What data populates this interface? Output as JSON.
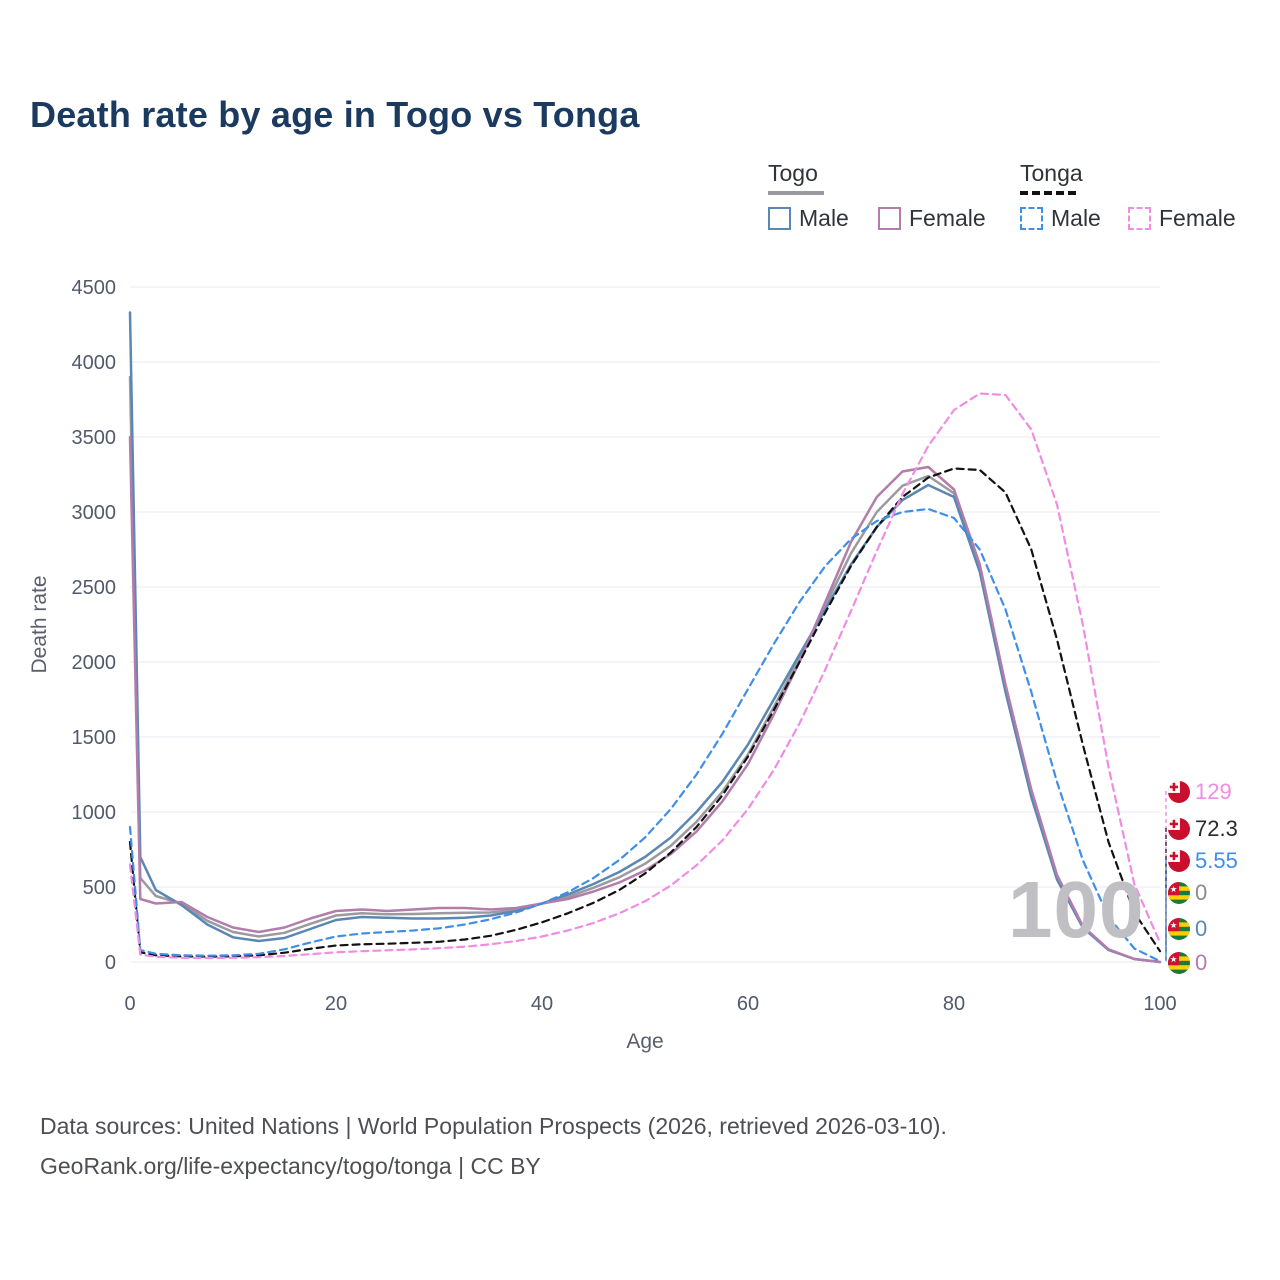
{
  "title": "Death rate by age in Togo vs Tonga",
  "legend": {
    "groups": [
      {
        "label": "Togo",
        "style": "solid",
        "color": "#9a9aa0"
      },
      {
        "label": "Tonga",
        "style": "dashed",
        "color": "#121212"
      }
    ],
    "items": [
      {
        "label": "Male",
        "group": "Togo",
        "style": "solid",
        "color": "#5b87b3"
      },
      {
        "label": "Female",
        "group": "Togo",
        "style": "solid",
        "color": "#b27cab"
      },
      {
        "label": "Male",
        "group": "Tonga",
        "style": "dashed",
        "color": "#3f8ee8"
      },
      {
        "label": "Female",
        "group": "Tonga",
        "style": "dashed",
        "color": "#ee8de3"
      }
    ]
  },
  "watermark": "100",
  "end_labels": [
    {
      "value": "129",
      "color": "#ee8de3",
      "flag": "tonga",
      "icon": "tonga-flag-icon"
    },
    {
      "value": "72.3",
      "color": "#2b2b2b",
      "flag": "tonga",
      "icon": "tonga-flag-icon"
    },
    {
      "value": "5.55",
      "color": "#3f8ee8",
      "flag": "tonga",
      "icon": "tonga-flag-icon"
    },
    {
      "value": "0",
      "color": "#8b8b93",
      "flag": "togo",
      "icon": "togo-flag-icon"
    },
    {
      "value": "0",
      "color": "#5b87b3",
      "flag": "togo",
      "icon": "togo-flag-icon"
    },
    {
      "value": "0",
      "color": "#b27cab",
      "flag": "togo",
      "icon": "togo-flag-icon"
    }
  ],
  "footer": {
    "line1": "Data sources: United Nations | World Population Prospects (2026, retrieved 2026-03-10).",
    "line2": "GeoRank.org/life-expectancy/togo/tonga | CC BY"
  },
  "chart_data": {
    "type": "line",
    "title": "Death rate by age in Togo vs Tonga",
    "xlabel": "Age",
    "ylabel": "Death rate",
    "xlim": [
      0,
      100
    ],
    "ylim": [
      0,
      4500
    ],
    "x_ticks": [
      0,
      20,
      40,
      60,
      80,
      100
    ],
    "y_ticks": [
      0,
      500,
      1000,
      1500,
      2000,
      2500,
      3000,
      3500,
      4000,
      4500
    ],
    "grid": "horizontal",
    "legend_position": "top-right",
    "x": [
      0,
      1,
      2.5,
      5,
      7.5,
      10,
      12.5,
      15,
      17.5,
      20,
      22.5,
      25,
      27.5,
      30,
      32.5,
      35,
      37.5,
      40,
      42.5,
      45,
      47.5,
      50,
      52.5,
      55,
      57.5,
      60,
      62.5,
      65,
      67.5,
      70,
      72.5,
      75,
      77.5,
      80,
      82.5,
      85,
      87.5,
      90,
      92.5,
      95,
      97.5,
      100
    ],
    "series": [
      {
        "name": "Togo Total",
        "group": "Togo",
        "style": "solid",
        "color": "#9a9aa0",
        "width": 2.5,
        "y": [
          3900,
          560,
          440,
          390,
          275,
          200,
          170,
          195,
          255,
          310,
          325,
          318,
          320,
          325,
          328,
          330,
          350,
          390,
          435,
          495,
          565,
          655,
          775,
          935,
          1135,
          1385,
          1700,
          2025,
          2375,
          2725,
          3000,
          3175,
          3240,
          3125,
          2625,
          1825,
          1125,
          565,
          235,
          82,
          20,
          0
        ]
      },
      {
        "name": "Togo Male",
        "group": "Togo",
        "style": "solid",
        "color": "#5b87b3",
        "width": 2.5,
        "y": [
          4330,
          700,
          480,
          380,
          250,
          165,
          140,
          160,
          220,
          280,
          300,
          295,
          290,
          290,
          295,
          310,
          340,
          390,
          450,
          520,
          600,
          700,
          830,
          1000,
          1200,
          1450,
          1750,
          2050,
          2350,
          2650,
          2900,
          3080,
          3180,
          3100,
          2600,
          1800,
          1100,
          550,
          230,
          80,
          20,
          0
        ]
      },
      {
        "name": "Togo Female",
        "group": "Togo",
        "style": "solid",
        "color": "#b27cab",
        "width": 2.5,
        "y": [
          3500,
          420,
          390,
          400,
          300,
          230,
          200,
          230,
          290,
          340,
          350,
          340,
          350,
          360,
          360,
          350,
          360,
          390,
          420,
          470,
          530,
          610,
          720,
          870,
          1070,
          1320,
          1650,
          2000,
          2400,
          2800,
          3100,
          3270,
          3300,
          3150,
          2650,
          1850,
          1150,
          580,
          240,
          85,
          20,
          0
        ]
      },
      {
        "name": "Tonga Total",
        "group": "Tonga",
        "style": "dashed",
        "color": "#121212",
        "width": 2.2,
        "y": [
          800,
          65,
          45,
          38,
          36,
          38,
          45,
          62,
          88,
          110,
          118,
          122,
          128,
          135,
          150,
          175,
          215,
          265,
          325,
          395,
          480,
          590,
          730,
          900,
          1110,
          1370,
          1680,
          2000,
          2330,
          2640,
          2900,
          3100,
          3230,
          3290,
          3280,
          3130,
          2750,
          2150,
          1450,
          800,
          330,
          72.3
        ]
      },
      {
        "name": "Tonga Male",
        "group": "Tonga",
        "style": "dashed",
        "color": "#3f8ee8",
        "width": 2.2,
        "y": [
          900,
          80,
          55,
          45,
          42,
          45,
          55,
          85,
          130,
          170,
          190,
          200,
          210,
          225,
          250,
          285,
          330,
          390,
          465,
          560,
          680,
          830,
          1020,
          1250,
          1520,
          1820,
          2120,
          2400,
          2640,
          2820,
          2940,
          3000,
          3020,
          2960,
          2750,
          2350,
          1800,
          1200,
          680,
          300,
          90,
          5.55
        ]
      },
      {
        "name": "Tonga Female",
        "group": "Tonga",
        "style": "dashed",
        "color": "#ee8de3",
        "width": 2.2,
        "y": [
          650,
          50,
          35,
          28,
          26,
          28,
          32,
          40,
          52,
          65,
          72,
          78,
          84,
          92,
          102,
          118,
          140,
          170,
          210,
          260,
          325,
          405,
          510,
          645,
          810,
          1020,
          1280,
          1590,
          1950,
          2340,
          2740,
          3120,
          3440,
          3680,
          3790,
          3780,
          3550,
          3050,
          2250,
          1300,
          520,
          129
        ]
      }
    ]
  }
}
